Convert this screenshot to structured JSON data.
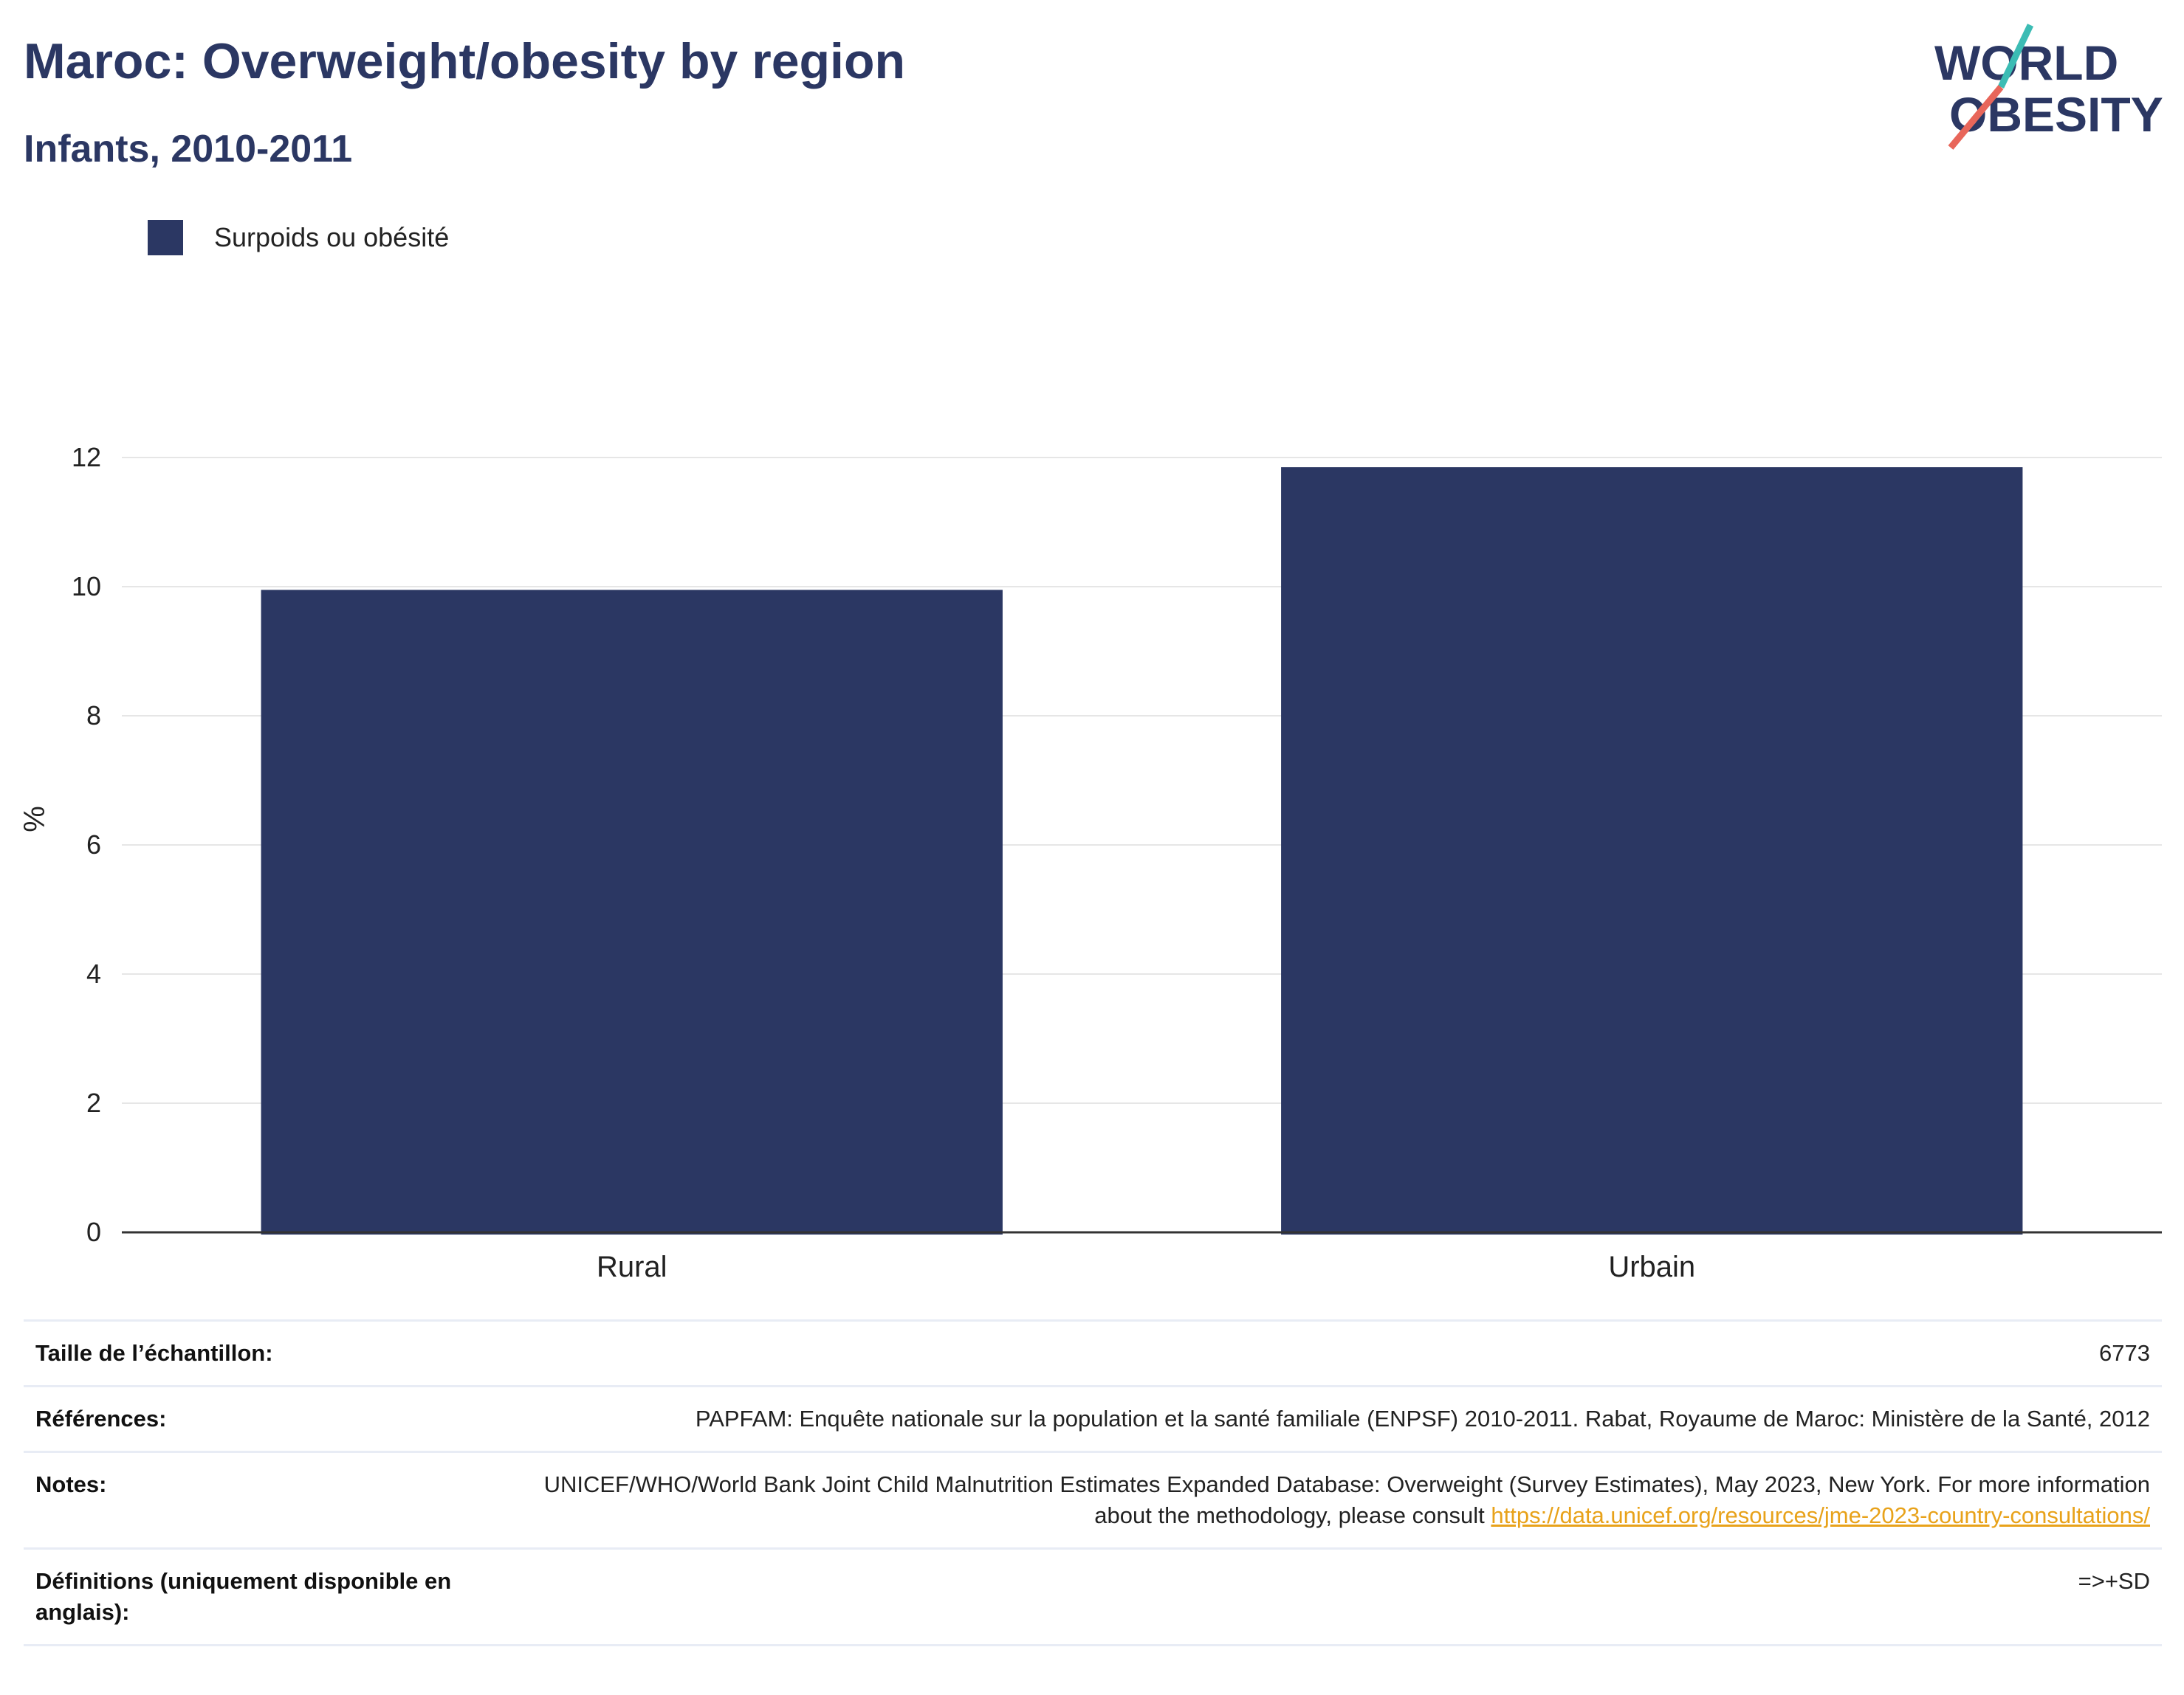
{
  "header": {
    "title": "Maroc: Overweight/obesity by region",
    "subtitle": "Infants, 2010-2011"
  },
  "logo": {
    "line1": "WORLD",
    "line2": "OBESITY"
  },
  "colors": {
    "bar": "#2b3763",
    "title": "#2b3763",
    "grid": "#e6e6e6",
    "axis": "#333333",
    "link": "#e8a21a",
    "logo_teal": "#3cbcb4",
    "logo_coral": "#e8665a"
  },
  "chart_data": {
    "type": "bar",
    "categories": [
      "Rural",
      "Urbain"
    ],
    "series": [
      {
        "name": "Surpoids ou obésité",
        "values": [
          9.95,
          11.85
        ]
      }
    ],
    "ylabel": "%",
    "ylim": [
      0,
      12.8
    ],
    "yticks": [
      0,
      2,
      4,
      6,
      8,
      10,
      12
    ],
    "grid": true,
    "legend": "top-left"
  },
  "table": {
    "sample_label": "Taille de l’échantillon:",
    "sample_value": "6773",
    "refs_label": "Références:",
    "refs_value": "PAPFAM: Enquête nationale sur la population et la santé familiale (ENPSF) 2010-2011. Rabat, Royaume de Maroc: Ministère de la Santé, 2012",
    "notes_label": "Notes:",
    "notes_value": "UNICEF/WHO/World Bank Joint Child Malnutrition Estimates Expanded Database: Overweight (Survey Estimates), May 2023, New York. For more information about the methodology, please consult",
    "notes_link": "https://data.unicef.org/resources/jme-2023-country-consultations/",
    "defs_label": "Définitions (uniquement disponible en anglais):",
    "defs_value": "=>+SD"
  }
}
